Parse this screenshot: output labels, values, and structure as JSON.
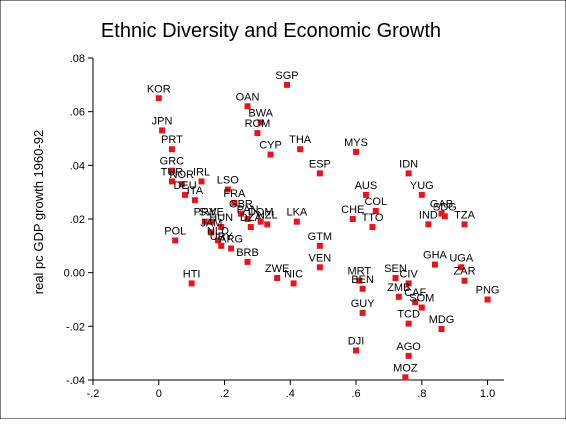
{
  "chart_data": {
    "type": "scatter",
    "title": "Ethnic Diversity and Economic Growth",
    "xlabel": "",
    "ylabel": "real pc GDP growth 1960-92",
    "xlim": [
      -0.2,
      1.05
    ],
    "ylim": [
      -0.04,
      0.08
    ],
    "xticks": [
      -0.2,
      0,
      0.2,
      0.4,
      0.6,
      0.8,
      1.0
    ],
    "xtick_labels": [
      "-.2",
      "0",
      ".2",
      ".4",
      ".6",
      ".8",
      "1.0"
    ],
    "yticks": [
      -0.04,
      -0.02,
      0.0,
      0.02,
      0.04,
      0.06,
      0.08
    ],
    "ytick_labels": [
      "-.04",
      "-.02",
      "0.00",
      ".02",
      ".04",
      ".06",
      ".08"
    ],
    "grid": false,
    "marker_color": "#e8141c",
    "points": [
      {
        "label": "KOR",
        "x": 0.0,
        "y": 0.065
      },
      {
        "label": "JPN",
        "x": 0.01,
        "y": 0.053
      },
      {
        "label": "PRT",
        "x": 0.04,
        "y": 0.046
      },
      {
        "label": "GRC",
        "x": 0.04,
        "y": 0.038
      },
      {
        "label": "TUR",
        "x": 0.04,
        "y": 0.034
      },
      {
        "label": "NOR",
        "x": 0.07,
        "y": 0.033
      },
      {
        "label": "IRL",
        "x": 0.13,
        "y": 0.034
      },
      {
        "label": "DEU",
        "x": 0.08,
        "y": 0.029
      },
      {
        "label": "ITA",
        "x": 0.11,
        "y": 0.027
      },
      {
        "label": "POL",
        "x": 0.05,
        "y": 0.012
      },
      {
        "label": "HTI",
        "x": 0.1,
        "y": -0.004
      },
      {
        "label": "PRY",
        "x": 0.14,
        "y": 0.019
      },
      {
        "label": "SWE",
        "x": 0.16,
        "y": 0.019
      },
      {
        "label": "HUN",
        "x": 0.19,
        "y": 0.017
      },
      {
        "label": "JAM",
        "x": 0.16,
        "y": 0.015
      },
      {
        "label": "NLD",
        "x": 0.18,
        "y": 0.012
      },
      {
        "label": "URY",
        "x": 0.19,
        "y": 0.01
      },
      {
        "label": "ARG",
        "x": 0.22,
        "y": 0.009
      },
      {
        "label": "LSO",
        "x": 0.21,
        "y": 0.031
      },
      {
        "label": "FRA",
        "x": 0.23,
        "y": 0.026
      },
      {
        "label": "GBR",
        "x": 0.25,
        "y": 0.022
      },
      {
        "label": "PAN",
        "x": 0.27,
        "y": 0.02
      },
      {
        "label": "DZA",
        "x": 0.28,
        "y": 0.017
      },
      {
        "label": "DOM",
        "x": 0.31,
        "y": 0.019
      },
      {
        "label": "NZL",
        "x": 0.33,
        "y": 0.018
      },
      {
        "label": "OAN",
        "x": 0.27,
        "y": 0.062
      },
      {
        "label": "SGP",
        "x": 0.39,
        "y": 0.07
      },
      {
        "label": "BWA",
        "x": 0.31,
        "y": 0.056
      },
      {
        "label": "ROM",
        "x": 0.3,
        "y": 0.052
      },
      {
        "label": "CYP",
        "x": 0.34,
        "y": 0.044
      },
      {
        "label": "THA",
        "x": 0.43,
        "y": 0.046
      },
      {
        "label": "BRB",
        "x": 0.27,
        "y": 0.004
      },
      {
        "label": "ZWE",
        "x": 0.36,
        "y": -0.002
      },
      {
        "label": "NIC",
        "x": 0.41,
        "y": -0.004
      },
      {
        "label": "LKA",
        "x": 0.42,
        "y": 0.019
      },
      {
        "label": "ESP",
        "x": 0.49,
        "y": 0.037
      },
      {
        "label": "GTM",
        "x": 0.49,
        "y": 0.01
      },
      {
        "label": "VEN",
        "x": 0.49,
        "y": 0.002
      },
      {
        "label": "MYS",
        "x": 0.6,
        "y": 0.045
      },
      {
        "label": "AUS",
        "x": 0.63,
        "y": 0.029
      },
      {
        "label": "CHE",
        "x": 0.59,
        "y": 0.02
      },
      {
        "label": "COL",
        "x": 0.66,
        "y": 0.023
      },
      {
        "label": "GUY",
        "x": 0.62,
        "y": -0.015
      },
      {
        "label": "DJI",
        "x": 0.6,
        "y": -0.029
      },
      {
        "label": "MRT",
        "x": 0.61,
        "y": -0.003
      },
      {
        "label": "BEN",
        "x": 0.62,
        "y": -0.006
      },
      {
        "label": "TTO",
        "x": 0.65,
        "y": 0.017
      },
      {
        "label": "IDN",
        "x": 0.76,
        "y": 0.037
      },
      {
        "label": "YUG",
        "x": 0.8,
        "y": 0.029
      },
      {
        "label": "GAB",
        "x": 0.86,
        "y": 0.022
      },
      {
        "label": "SDG",
        "x": 0.87,
        "y": 0.021
      },
      {
        "label": "IND",
        "x": 0.82,
        "y": 0.018
      },
      {
        "label": "TZA",
        "x": 0.93,
        "y": 0.018
      },
      {
        "label": "GHA",
        "x": 0.84,
        "y": 0.003
      },
      {
        "label": "UGA",
        "x": 0.92,
        "y": 0.002
      },
      {
        "label": "ZAR",
        "x": 0.93,
        "y": -0.003
      },
      {
        "label": "PNG",
        "x": 1.0,
        "y": -0.01
      },
      {
        "label": "SEN",
        "x": 0.72,
        "y": -0.002
      },
      {
        "label": "CIV",
        "x": 0.76,
        "y": -0.004
      },
      {
        "label": "ZMB",
        "x": 0.73,
        "y": -0.009
      },
      {
        "label": "CAF",
        "x": 0.78,
        "y": -0.011
      },
      {
        "label": "SOM",
        "x": 0.8,
        "y": -0.013
      },
      {
        "label": "TCD",
        "x": 0.76,
        "y": -0.019
      },
      {
        "label": "MDG",
        "x": 0.86,
        "y": -0.021
      },
      {
        "label": "AGO",
        "x": 0.76,
        "y": -0.031
      },
      {
        "label": "MOZ",
        "x": 0.75,
        "y": -0.039
      }
    ]
  }
}
